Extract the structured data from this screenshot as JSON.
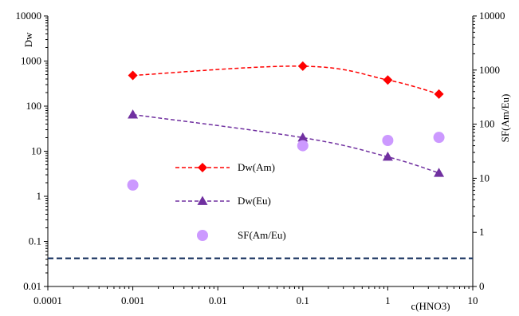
{
  "chart_data": {
    "type": "scatter",
    "x_scale": "log",
    "y_scale": "log",
    "xlabel": "c(HNO3)",
    "ylabel_left": "Dw",
    "ylabel_right": "SF(Am/Eu)",
    "xlim": [
      0.0001,
      10
    ],
    "ylim_left": [
      0.01,
      10000
    ],
    "ylim_right": [
      0,
      10000
    ],
    "x_ticks": [
      "0.0001",
      "0.001",
      "0.01",
      "0.1",
      "1",
      "10"
    ],
    "y_left_ticks": [
      "0.01",
      "0.1",
      "1",
      "10",
      "100",
      "1000",
      "10000"
    ],
    "y_right_ticks": [
      "0",
      "1",
      "10",
      "100",
      "1000",
      "10000"
    ],
    "grid": false,
    "legend_position": "center-left",
    "series": [
      {
        "name": "Dw(Am)",
        "axis": "left",
        "marker": "diamond",
        "line": "dashed",
        "color": "#ff0000",
        "x": [
          0.001,
          0.1,
          1,
          4
        ],
        "y": [
          480,
          770,
          380,
          185
        ]
      },
      {
        "name": "Dw(Eu)",
        "axis": "left",
        "marker": "triangle",
        "line": "dashed",
        "color": "#7030a0",
        "x": [
          0.001,
          0.1,
          1,
          4
        ],
        "y": [
          65,
          20,
          7.5,
          3.3
        ]
      },
      {
        "name": "SF(Am/Eu)",
        "axis": "right",
        "marker": "circle",
        "line": "none",
        "color": "#cc99ff",
        "x": [
          0.001,
          0.1,
          1,
          4
        ],
        "y": [
          7.5,
          40,
          50,
          57
        ]
      }
    ],
    "reference_line": {
      "style": "dashed",
      "color": "#1f3864",
      "axis": "left",
      "y": 0.042
    }
  }
}
